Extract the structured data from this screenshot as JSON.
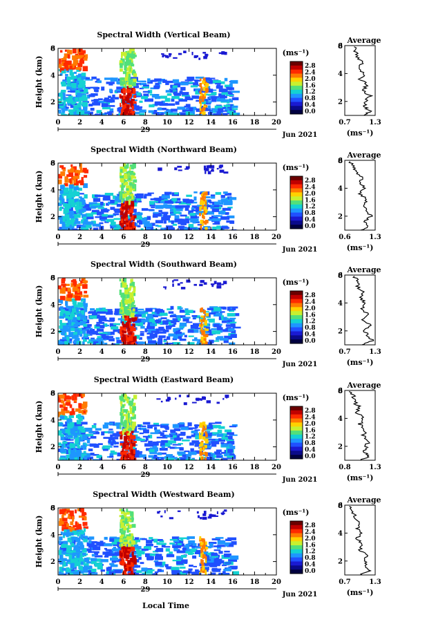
{
  "figure": {
    "xlabel": "Local Time",
    "date_label": "Jun 2021",
    "day_label": "29",
    "height_label": "Height (km)",
    "unit_label": "(ms⁻¹)",
    "avg_title": "Average",
    "avg_unit": "(ms⁻¹)",
    "colorbar_ticks": [
      "2.8",
      "2.4",
      "2.0",
      "1.6",
      "1.2",
      "0.8",
      "0.4",
      "0.0"
    ],
    "colorbar_colors": [
      "#6b0000",
      "#c00000",
      "#ff2a00",
      "#ff7a00",
      "#ffd200",
      "#c8f030",
      "#52e07a",
      "#14d2d2",
      "#1e96ff",
      "#2050ff",
      "#1a1ad2",
      "#0a0a8a",
      "#000040"
    ]
  },
  "chart_data": [
    {
      "type": "heatmap",
      "title": "Spectral Width (Vertical Beam)",
      "xlabel": "Local Time",
      "ylabel": "Height (km)",
      "xlim": [
        0,
        20
      ],
      "ylim": [
        1,
        6
      ],
      "xticks": [
        "0",
        "2",
        "4",
        "6",
        "8",
        "10",
        "12",
        "14",
        "16",
        "18",
        "20"
      ],
      "yticks": [
        "2",
        "4",
        "6"
      ],
      "colorbar": {
        "label": "(ms⁻¹)",
        "range": [
          0.0,
          2.8
        ]
      },
      "profile": {
        "title": "Average",
        "xlabel": "(ms⁻¹)",
        "xticks": [
          "0.7",
          "1.3"
        ],
        "xlim": [
          0.7,
          1.3
        ],
        "yticks": [
          "2",
          "4",
          "6"
        ],
        "height": [
          1.0,
          1.3,
          1.6,
          2.0,
          2.4,
          2.8,
          3.2,
          3.6,
          4.0,
          4.4,
          4.8,
          5.2,
          5.6,
          6.0
        ],
        "value": [
          1.05,
          1.2,
          1.1,
          1.1,
          1.2,
          1.05,
          1.15,
          1.0,
          1.1,
          0.95,
          1.05,
          0.95,
          0.9,
          0.9
        ]
      }
    },
    {
      "type": "heatmap",
      "title": "Spectral Width (Northward Beam)",
      "xlabel": "Local Time",
      "ylabel": "Height (km)",
      "xlim": [
        0,
        20
      ],
      "ylim": [
        1,
        6
      ],
      "xticks": [
        "0",
        "2",
        "4",
        "6",
        "8",
        "10",
        "12",
        "14",
        "16",
        "18",
        "20"
      ],
      "yticks": [
        "2",
        "4",
        "6"
      ],
      "colorbar": {
        "label": "(ms⁻¹)",
        "range": [
          0.0,
          2.8
        ]
      },
      "profile": {
        "title": "Average",
        "xlabel": "(ms⁻¹)",
        "xticks": [
          "0.6",
          "1.3"
        ],
        "xlim": [
          0.6,
          1.3
        ],
        "yticks": [
          "2",
          "4",
          "6"
        ],
        "height": [
          1.0,
          1.3,
          1.6,
          2.0,
          2.4,
          2.8,
          3.2,
          3.6,
          4.0,
          4.4,
          4.8,
          5.2,
          5.6,
          6.0
        ],
        "value": [
          1.0,
          1.15,
          1.05,
          1.2,
          1.1,
          1.05,
          1.1,
          0.95,
          1.05,
          0.95,
          1.0,
          0.85,
          0.8,
          0.7
        ]
      }
    },
    {
      "type": "heatmap",
      "title": "Spectral Width (Southward Beam)",
      "xlabel": "Local Time",
      "ylabel": "Height (km)",
      "xlim": [
        0,
        20
      ],
      "ylim": [
        1,
        6
      ],
      "xticks": [
        "0",
        "2",
        "4",
        "6",
        "8",
        "10",
        "12",
        "14",
        "16",
        "18",
        "20"
      ],
      "yticks": [
        "2",
        "4",
        "6"
      ],
      "colorbar": {
        "label": "(ms⁻¹)",
        "range": [
          0.0,
          2.8
        ]
      },
      "profile": {
        "title": "Average",
        "xlabel": "(ms⁻¹)",
        "xticks": [
          "0.7",
          "1.3"
        ],
        "xlim": [
          0.7,
          1.3
        ],
        "yticks": [
          "2",
          "4",
          "6"
        ],
        "height": [
          1.0,
          1.3,
          1.6,
          2.0,
          2.4,
          2.8,
          3.2,
          3.6,
          4.0,
          4.4,
          4.8,
          5.2,
          5.6,
          6.0
        ],
        "value": [
          1.05,
          1.25,
          1.15,
          1.1,
          1.2,
          1.05,
          1.15,
          1.05,
          1.1,
          1.0,
          1.05,
          0.95,
          0.95,
          0.85
        ]
      }
    },
    {
      "type": "heatmap",
      "title": "Spectral Width (Eastward Beam)",
      "xlabel": "Local Time",
      "ylabel": "Height (km)",
      "xlim": [
        0,
        20
      ],
      "ylim": [
        1,
        6
      ],
      "xticks": [
        "0",
        "2",
        "4",
        "6",
        "8",
        "10",
        "12",
        "14",
        "16",
        "18",
        "20"
      ],
      "yticks": [
        "2",
        "4",
        "6"
      ],
      "colorbar": {
        "label": "(ms⁻¹)",
        "range": [
          0.0,
          2.8
        ]
      },
      "profile": {
        "title": "Average",
        "xlabel": "(ms⁻¹)",
        "xticks": [
          "0.8",
          "1.3"
        ],
        "xlim": [
          0.8,
          1.3
        ],
        "yticks": [
          "2",
          "4",
          "6"
        ],
        "height": [
          1.0,
          1.3,
          1.6,
          2.0,
          2.4,
          2.8,
          3.2,
          3.6,
          4.0,
          4.4,
          4.8,
          5.2,
          5.6,
          6.0
        ],
        "value": [
          1.05,
          1.2,
          1.1,
          1.15,
          1.2,
          1.1,
          1.15,
          1.05,
          1.1,
          1.0,
          1.05,
          0.95,
          0.95,
          0.9
        ]
      }
    },
    {
      "type": "heatmap",
      "title": "Spectral Width (Westward Beam)",
      "xlabel": "Local Time",
      "ylabel": "Height (km)",
      "xlim": [
        0,
        20
      ],
      "ylim": [
        1,
        6
      ],
      "xticks": [
        "0",
        "2",
        "4",
        "6",
        "8",
        "10",
        "12",
        "14",
        "16",
        "18",
        "20"
      ],
      "yticks": [
        "2",
        "4",
        "6"
      ],
      "colorbar": {
        "label": "(ms⁻¹)",
        "range": [
          0.0,
          2.8
        ]
      },
      "profile": {
        "title": "Average",
        "xlabel": "(ms⁻¹)",
        "xticks": [
          "0.7",
          "1.3"
        ],
        "xlim": [
          0.7,
          1.3
        ],
        "yticks": [
          "2",
          "4",
          "6"
        ],
        "height": [
          1.0,
          1.3,
          1.6,
          2.0,
          2.4,
          2.8,
          3.2,
          3.6,
          4.0,
          4.4,
          4.8,
          5.2,
          5.6,
          6.0
        ],
        "value": [
          1.0,
          1.2,
          1.1,
          1.1,
          1.15,
          1.0,
          1.05,
          0.95,
          1.0,
          0.95,
          1.0,
          0.9,
          0.85,
          0.8
        ]
      }
    }
  ]
}
